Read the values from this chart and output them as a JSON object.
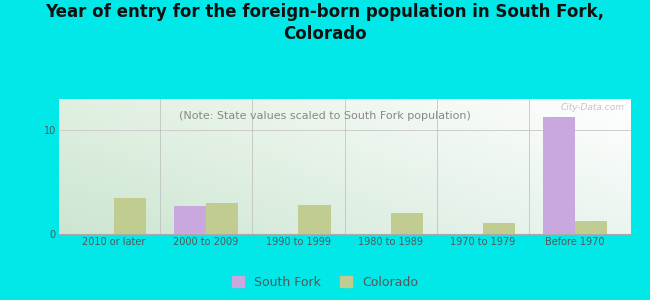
{
  "title": "Year of entry for the foreign-born population in South Fork,\nColorado",
  "subtitle": "(Note: State values scaled to South Fork population)",
  "categories": [
    "2010 or later",
    "2000 to 2009",
    "1990 to 1999",
    "1980 to 1989",
    "1970 to 1979",
    "Before 1970"
  ],
  "south_fork_values": [
    0,
    2.7,
    0,
    0,
    0,
    11.3
  ],
  "colorado_values": [
    3.5,
    3.0,
    2.8,
    2.0,
    1.1,
    1.3
  ],
  "south_fork_color": "#c9a8e0",
  "colorado_color": "#c0cc90",
  "bar_width": 0.35,
  "ylim": [
    0,
    13
  ],
  "yticks": [
    0,
    10
  ],
  "bg_topleft": "#d8eed8",
  "bg_topright": "#f0f8f0",
  "bg_bottomleft": "#c8e8d8",
  "bg_bottomright": "#ffffff",
  "outer_bg": "#00e8e8",
  "title_color": "#111111",
  "subtitle_color": "#888888",
  "title_fontsize": 12,
  "subtitle_fontsize": 8,
  "tick_fontsize": 7,
  "legend_fontsize": 9,
  "watermark": "City-Data.com"
}
